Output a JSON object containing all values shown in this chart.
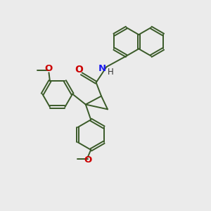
{
  "bg_color": "#ebebeb",
  "bond_color": "#3a5a28",
  "bond_width": 1.4,
  "O_color": "#cc0000",
  "N_color": "#1a1aee",
  "figsize": [
    3.0,
    3.0
  ],
  "dpi": 100,
  "xlim": [
    0,
    10
  ],
  "ylim": [
    0,
    10
  ]
}
